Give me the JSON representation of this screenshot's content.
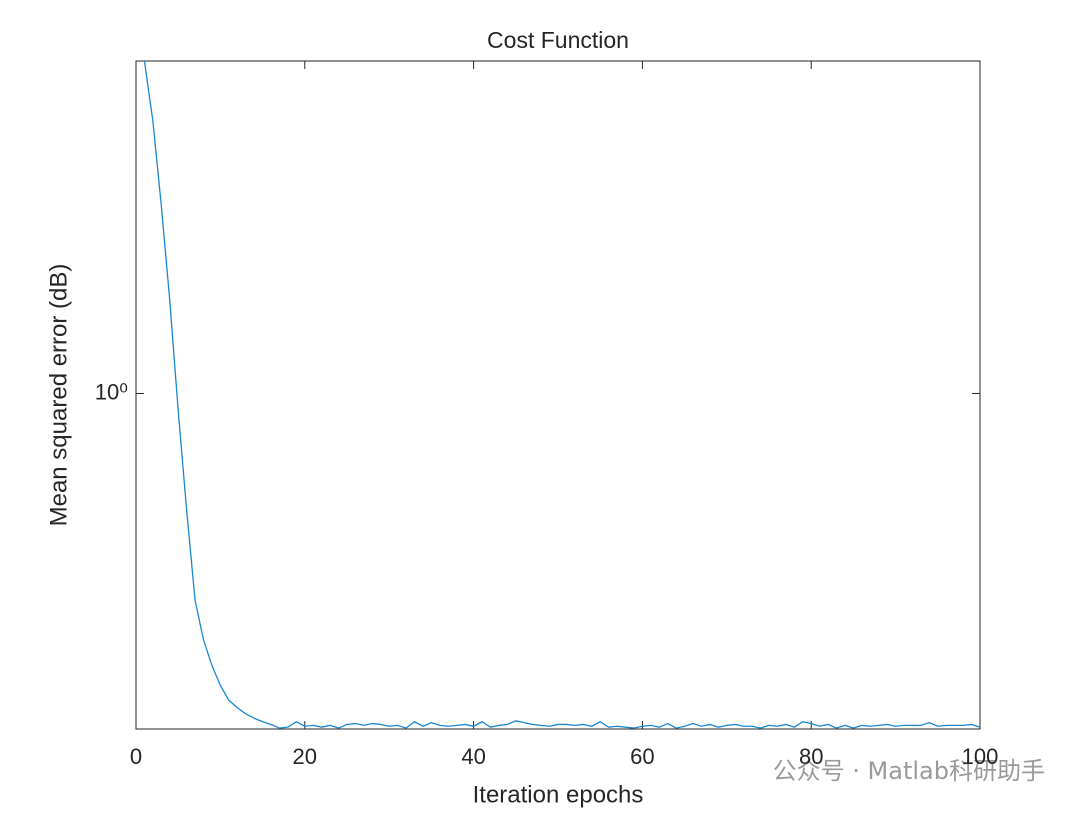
{
  "chart_data": {
    "type": "line",
    "title": "Cost Function",
    "x_label": "Iteration epochs",
    "y_label": "Mean squared error (dB)",
    "watermark": "公众号 · Matlab科研助手",
    "log_y": true,
    "grid": false,
    "x": [
      1,
      2,
      3,
      4,
      5,
      6,
      7,
      8,
      9,
      10,
      11,
      12,
      13,
      14,
      15,
      16,
      17,
      18,
      19,
      20,
      21,
      22,
      23,
      24,
      25,
      26,
      27,
      28,
      29,
      30,
      31,
      32,
      33,
      34,
      35,
      36,
      37,
      38,
      39,
      40,
      41,
      42,
      43,
      44,
      45,
      46,
      47,
      48,
      49,
      50,
      51,
      52,
      53,
      54,
      55,
      56,
      57,
      58,
      59,
      60,
      61,
      62,
      63,
      64,
      65,
      66,
      67,
      68,
      69,
      70,
      71,
      72,
      73,
      74,
      75,
      76,
      77,
      78,
      79,
      80,
      81,
      82,
      83,
      84,
      85,
      86,
      87,
      88,
      89,
      90,
      91,
      92,
      93,
      94,
      95,
      96,
      97,
      98,
      99,
      100
    ],
    "series": [
      {
        "color": "#1a86d0",
        "values": [
          3.0,
          2.46,
          1.86,
          1.36,
          0.945,
          0.68,
          0.505,
          0.443,
          0.407,
          0.381,
          0.363,
          0.354,
          0.347,
          0.342,
          0.338,
          0.335,
          0.331,
          0.332,
          0.338,
          0.333,
          0.334,
          0.332,
          0.334,
          0.331,
          0.335,
          0.336,
          0.334,
          0.336,
          0.335,
          0.333,
          0.334,
          0.331,
          0.338,
          0.333,
          0.337,
          0.334,
          0.333,
          0.334,
          0.335,
          0.333,
          0.338,
          0.332,
          0.334,
          0.335,
          0.339,
          0.337,
          0.335,
          0.334,
          0.333,
          0.335,
          0.335,
          0.334,
          0.335,
          0.333,
          0.338,
          0.332,
          0.333,
          0.332,
          0.331,
          0.333,
          0.334,
          0.332,
          0.336,
          0.331,
          0.333,
          0.336,
          0.333,
          0.335,
          0.332,
          0.334,
          0.335,
          0.333,
          0.333,
          0.331,
          0.334,
          0.333,
          0.335,
          0.332,
          0.338,
          0.336,
          0.333,
          0.335,
          0.331,
          0.334,
          0.331,
          0.334,
          0.333,
          0.334,
          0.335,
          0.333,
          0.334,
          0.334,
          0.334,
          0.337,
          0.333,
          0.334,
          0.334,
          0.334,
          0.335,
          0.332
        ]
      }
    ],
    "xlim": [
      0,
      100
    ],
    "xticks": [
      0,
      20,
      40,
      60,
      80,
      100
    ],
    "ylim": [
      0.33,
      3
    ],
    "yticks": [
      {
        "value": 1,
        "label": "10⁰"
      }
    ]
  }
}
